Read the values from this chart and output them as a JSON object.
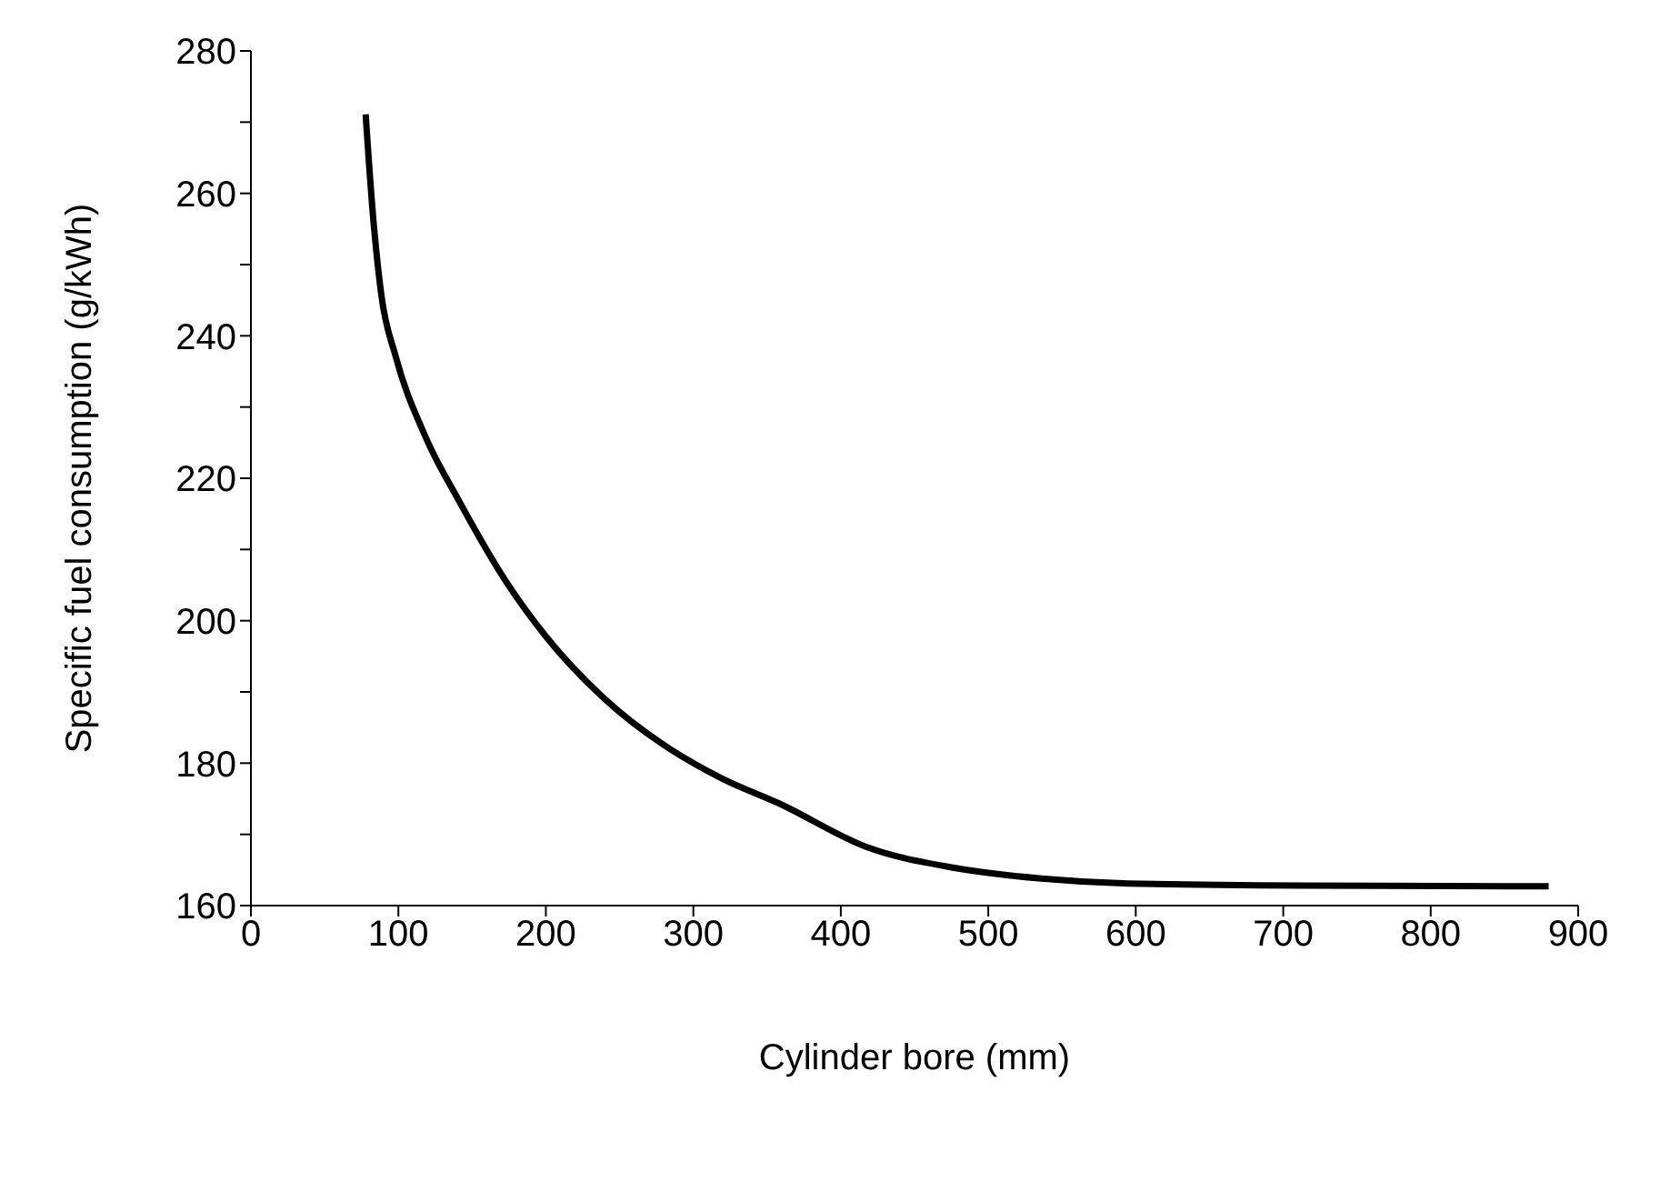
{
  "chart_data": {
    "type": "line",
    "xlabel": "Cylinder bore (mm)",
    "ylabel": "Specific fuel consumption (g/kWh)",
    "x": [
      77.8,
      82.5,
      88.4,
      98.2,
      118,
      141.7,
      173,
      200.8,
      240,
      279.6,
      319,
      358.6,
      417.8,
      476.9,
      536,
      595,
      713,
      880
    ],
    "values": [
      271.1,
      257.6,
      245.8,
      237.1,
      226,
      216.6,
      205.5,
      197.6,
      189,
      182.6,
      177.9,
      174.3,
      168.2,
      165.3,
      163.8,
      163.1,
      162.8,
      162.7
    ],
    "color": "#000000",
    "line_style": "solid",
    "marker": "none",
    "xlim": [
      0,
      900
    ],
    "xticks": [
      0,
      100,
      200,
      300,
      400,
      500,
      600,
      700,
      800,
      900
    ],
    "ylim": [
      160,
      280
    ],
    "yticks": [
      160,
      {
        "value": 170,
        "label": null
      },
      180,
      {
        "value": 190,
        "label": null
      },
      200,
      {
        "value": 210,
        "label": null
      },
      220,
      {
        "value": 230,
        "label": null
      },
      240,
      {
        "value": 250,
        "label": null
      },
      260,
      {
        "value": 270,
        "label": null
      },
      280
    ]
  }
}
